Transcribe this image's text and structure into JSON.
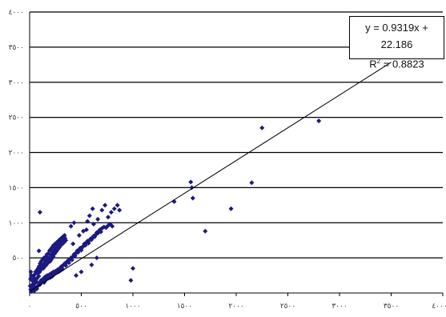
{
  "chart_data": {
    "type": "scatter",
    "title": "",
    "xlabel": "",
    "ylabel": "",
    "xlim": [
      0,
      4000
    ],
    "ylim": [
      0,
      4000
    ],
    "x_ticks": [
      {
        "value": 0,
        "label": "٠"
      },
      {
        "value": 500,
        "label": "٥٠٠"
      },
      {
        "value": 1000,
        "label": "١٠٠٠"
      },
      {
        "value": 1500,
        "label": "١٥٠٠"
      },
      {
        "value": 2000,
        "label": "٢٠٠٠"
      },
      {
        "value": 2500,
        "label": "٢٥٠٠"
      },
      {
        "value": 3000,
        "label": "٣٠٠٠"
      },
      {
        "value": 3500,
        "label": "٣٥٠٠"
      },
      {
        "value": 4000,
        "label": "٤٠٠٠"
      }
    ],
    "y_ticks": [
      {
        "value": 500,
        "label": "٥٠٠"
      },
      {
        "value": 1000,
        "label": "١٠٠٠"
      },
      {
        "value": 1500,
        "label": "١٥٠٠"
      },
      {
        "value": 2000,
        "label": "٢٠٠٠"
      },
      {
        "value": 2500,
        "label": "٢٥٠٠"
      },
      {
        "value": 3000,
        "label": "٣٠٠٠"
      },
      {
        "value": 3500,
        "label": "٣٥٠٠"
      },
      {
        "value": 4000,
        "label": "٤٠٠٠"
      }
    ],
    "grid": "horizontal",
    "marker_color": "#1a1a80",
    "trendline": {
      "slope": 0.9319,
      "intercept": 22.186,
      "x_range": [
        0,
        3500
      ],
      "color": "#000000"
    },
    "equation": {
      "line1": "y = 0.9319x + 22.186",
      "r2_prefix": "R",
      "r2_sup": "2",
      "r2_value": " = 0.8823"
    },
    "points": [
      [
        15,
        20
      ],
      [
        25,
        40
      ],
      [
        35,
        60
      ],
      [
        45,
        30
      ],
      [
        55,
        80
      ],
      [
        20,
        110
      ],
      [
        40,
        130
      ],
      [
        60,
        150
      ],
      [
        30,
        170
      ],
      [
        50,
        200
      ],
      [
        70,
        60
      ],
      [
        80,
        100
      ],
      [
        90,
        140
      ],
      [
        100,
        120
      ],
      [
        110,
        180
      ],
      [
        120,
        160
      ],
      [
        130,
        200
      ],
      [
        140,
        150
      ],
      [
        150,
        230
      ],
      [
        160,
        190
      ],
      [
        170,
        250
      ],
      [
        180,
        210
      ],
      [
        190,
        260
      ],
      [
        200,
        220
      ],
      [
        210,
        280
      ],
      [
        220,
        240
      ],
      [
        230,
        300
      ],
      [
        240,
        270
      ],
      [
        250,
        310
      ],
      [
        260,
        290
      ],
      [
        270,
        330
      ],
      [
        280,
        300
      ],
      [
        290,
        350
      ],
      [
        300,
        320
      ],
      [
        310,
        380
      ],
      [
        320,
        340
      ],
      [
        330,
        400
      ],
      [
        340,
        420
      ],
      [
        350,
        390
      ],
      [
        360,
        440
      ],
      [
        370,
        460
      ],
      [
        380,
        430
      ],
      [
        390,
        480
      ],
      [
        400,
        500
      ],
      [
        410,
        470
      ],
      [
        420,
        520
      ],
      [
        430,
        550
      ],
      [
        440,
        530
      ],
      [
        450,
        570
      ],
      [
        460,
        600
      ],
      [
        470,
        580
      ],
      [
        480,
        620
      ],
      [
        490,
        640
      ],
      [
        500,
        610
      ],
      [
        510,
        650
      ],
      [
        520,
        670
      ],
      [
        530,
        700
      ],
      [
        540,
        680
      ],
      [
        550,
        720
      ],
      [
        560,
        740
      ],
      [
        570,
        710
      ],
      [
        580,
        750
      ],
      [
        590,
        770
      ],
      [
        600,
        760
      ],
      [
        610,
        790
      ],
      [
        620,
        810
      ],
      [
        630,
        800
      ],
      [
        640,
        830
      ],
      [
        650,
        860
      ],
      [
        660,
        850
      ],
      [
        670,
        880
      ],
      [
        680,
        900
      ],
      [
        690,
        870
      ],
      [
        700,
        920
      ],
      [
        720,
        940
      ],
      [
        740,
        930
      ],
      [
        760,
        960
      ],
      [
        780,
        980
      ],
      [
        800,
        950
      ],
      [
        10,
        50
      ],
      [
        5,
        100
      ],
      [
        8,
        200
      ],
      [
        12,
        300
      ],
      [
        18,
        250
      ],
      [
        22,
        80
      ],
      [
        28,
        120
      ],
      [
        32,
        180
      ],
      [
        38,
        90
      ],
      [
        42,
        220
      ],
      [
        48,
        260
      ],
      [
        52,
        140
      ],
      [
        58,
        300
      ],
      [
        62,
        170
      ],
      [
        68,
        320
      ],
      [
        72,
        210
      ],
      [
        78,
        280
      ],
      [
        82,
        350
      ],
      [
        88,
        240
      ],
      [
        92,
        380
      ],
      [
        98,
        300
      ],
      [
        102,
        420
      ],
      [
        108,
        330
      ],
      [
        112,
        450
      ],
      [
        118,
        360
      ],
      [
        122,
        400
      ],
      [
        128,
        480
      ],
      [
        132,
        350
      ],
      [
        138,
        500
      ],
      [
        142,
        420
      ],
      [
        148,
        380
      ],
      [
        152,
        460
      ],
      [
        158,
        520
      ],
      [
        162,
        400
      ],
      [
        168,
        550
      ],
      [
        172,
        470
      ],
      [
        178,
        430
      ],
      [
        182,
        560
      ],
      [
        188,
        500
      ],
      [
        192,
        600
      ],
      [
        198,
        450
      ],
      [
        202,
        620
      ],
      [
        208,
        540
      ],
      [
        212,
        480
      ],
      [
        218,
        650
      ],
      [
        222,
        580
      ],
      [
        228,
        520
      ],
      [
        232,
        680
      ],
      [
        238,
        610
      ],
      [
        242,
        560
      ],
      [
        248,
        700
      ],
      [
        252,
        640
      ],
      [
        258,
        590
      ],
      [
        262,
        720
      ],
      [
        268,
        670
      ],
      [
        272,
        620
      ],
      [
        278,
        740
      ],
      [
        282,
        700
      ],
      [
        288,
        650
      ],
      [
        292,
        760
      ],
      [
        298,
        720
      ],
      [
        302,
        680
      ],
      [
        308,
        780
      ],
      [
        312,
        740
      ],
      [
        318,
        700
      ],
      [
        322,
        800
      ],
      [
        328,
        760
      ],
      [
        332,
        720
      ],
      [
        338,
        820
      ],
      [
        342,
        780
      ],
      [
        100,
        1150
      ],
      [
        350,
        750
      ],
      [
        420,
        700
      ],
      [
        480,
        820
      ],
      [
        520,
        880
      ],
      [
        550,
        900
      ],
      [
        580,
        1100
      ],
      [
        620,
        980
      ],
      [
        660,
        1050
      ],
      [
        700,
        1180
      ],
      [
        730,
        1250
      ],
      [
        760,
        1080
      ],
      [
        790,
        1150
      ],
      [
        820,
        1200
      ],
      [
        850,
        1250
      ],
      [
        870,
        1180
      ],
      [
        450,
        250
      ],
      [
        500,
        300
      ],
      [
        600,
        400
      ],
      [
        650,
        500
      ],
      [
        1000,
        350
      ],
      [
        980,
        180
      ],
      [
        1400,
        1300
      ],
      [
        1560,
        1580
      ],
      [
        1570,
        1500
      ],
      [
        1580,
        1350
      ],
      [
        1950,
        1200
      ],
      [
        2150,
        1570
      ],
      [
        2250,
        2350
      ],
      [
        2800,
        2450
      ],
      [
        1700,
        880
      ],
      [
        400,
        950
      ],
      [
        430,
        1000
      ],
      [
        560,
        1020
      ],
      [
        610,
        1200
      ],
      [
        90,
        600
      ]
    ]
  }
}
